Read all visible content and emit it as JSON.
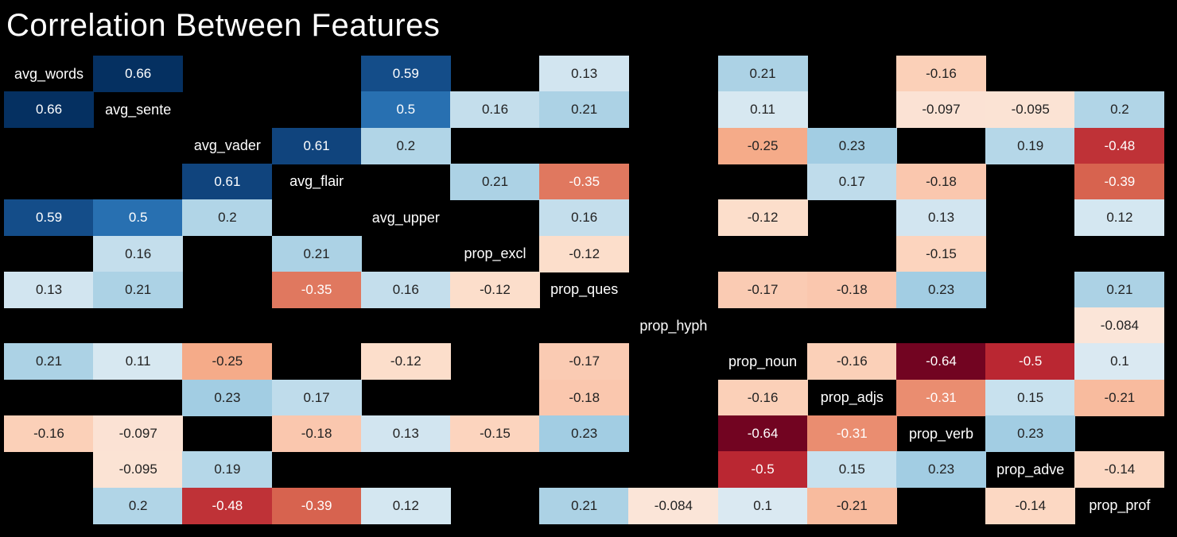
{
  "chart_data": {
    "type": "heatmap",
    "title": "Correlation Between Features",
    "labels": [
      "avg_words",
      "avg_sente",
      "avg_vader",
      "avg_flair",
      "avg_upper",
      "prop_excl",
      "prop_ques",
      "prop_hyph",
      "prop_noun",
      "prop_adjs",
      "prop_verb",
      "prop_adve",
      "prop_prof"
    ],
    "colormap": "RdBu_r",
    "color_range": [
      -0.66,
      0.66
    ],
    "matrix": [
      [
        null,
        0.66,
        null,
        null,
        0.59,
        null,
        0.13,
        null,
        0.21,
        null,
        -0.16,
        null,
        null
      ],
      [
        0.66,
        null,
        null,
        null,
        0.5,
        0.16,
        0.21,
        null,
        0.11,
        null,
        -0.097,
        -0.095,
        0.2
      ],
      [
        null,
        null,
        null,
        0.61,
        0.2,
        null,
        null,
        null,
        -0.25,
        0.23,
        null,
        0.19,
        -0.48
      ],
      [
        null,
        null,
        0.61,
        null,
        null,
        0.21,
        -0.35,
        null,
        null,
        0.17,
        -0.18,
        null,
        -0.39
      ],
      [
        0.59,
        0.5,
        0.2,
        null,
        null,
        null,
        0.16,
        null,
        -0.12,
        null,
        0.13,
        null,
        0.12
      ],
      [
        null,
        0.16,
        null,
        0.21,
        null,
        null,
        -0.12,
        null,
        null,
        null,
        -0.15,
        null,
        null
      ],
      [
        0.13,
        0.21,
        null,
        -0.35,
        0.16,
        -0.12,
        null,
        null,
        -0.17,
        -0.18,
        0.23,
        null,
        0.21
      ],
      [
        null,
        null,
        null,
        null,
        null,
        null,
        null,
        null,
        null,
        null,
        null,
        null,
        -0.084
      ],
      [
        0.21,
        0.11,
        -0.25,
        null,
        -0.12,
        null,
        -0.17,
        null,
        null,
        -0.16,
        -0.64,
        -0.5,
        0.1
      ],
      [
        null,
        null,
        0.23,
        0.17,
        null,
        null,
        -0.18,
        null,
        -0.16,
        null,
        -0.31,
        0.15,
        -0.21
      ],
      [
        -0.16,
        -0.097,
        null,
        -0.18,
        0.13,
        -0.15,
        0.23,
        null,
        -0.64,
        -0.31,
        null,
        0.23,
        null
      ],
      [
        null,
        -0.095,
        0.19,
        null,
        null,
        null,
        null,
        null,
        -0.5,
        0.15,
        0.23,
        null,
        -0.14
      ],
      [
        null,
        0.2,
        -0.48,
        -0.39,
        0.12,
        null,
        0.21,
        -0.084,
        0.1,
        -0.21,
        null,
        -0.14,
        null
      ]
    ]
  }
}
